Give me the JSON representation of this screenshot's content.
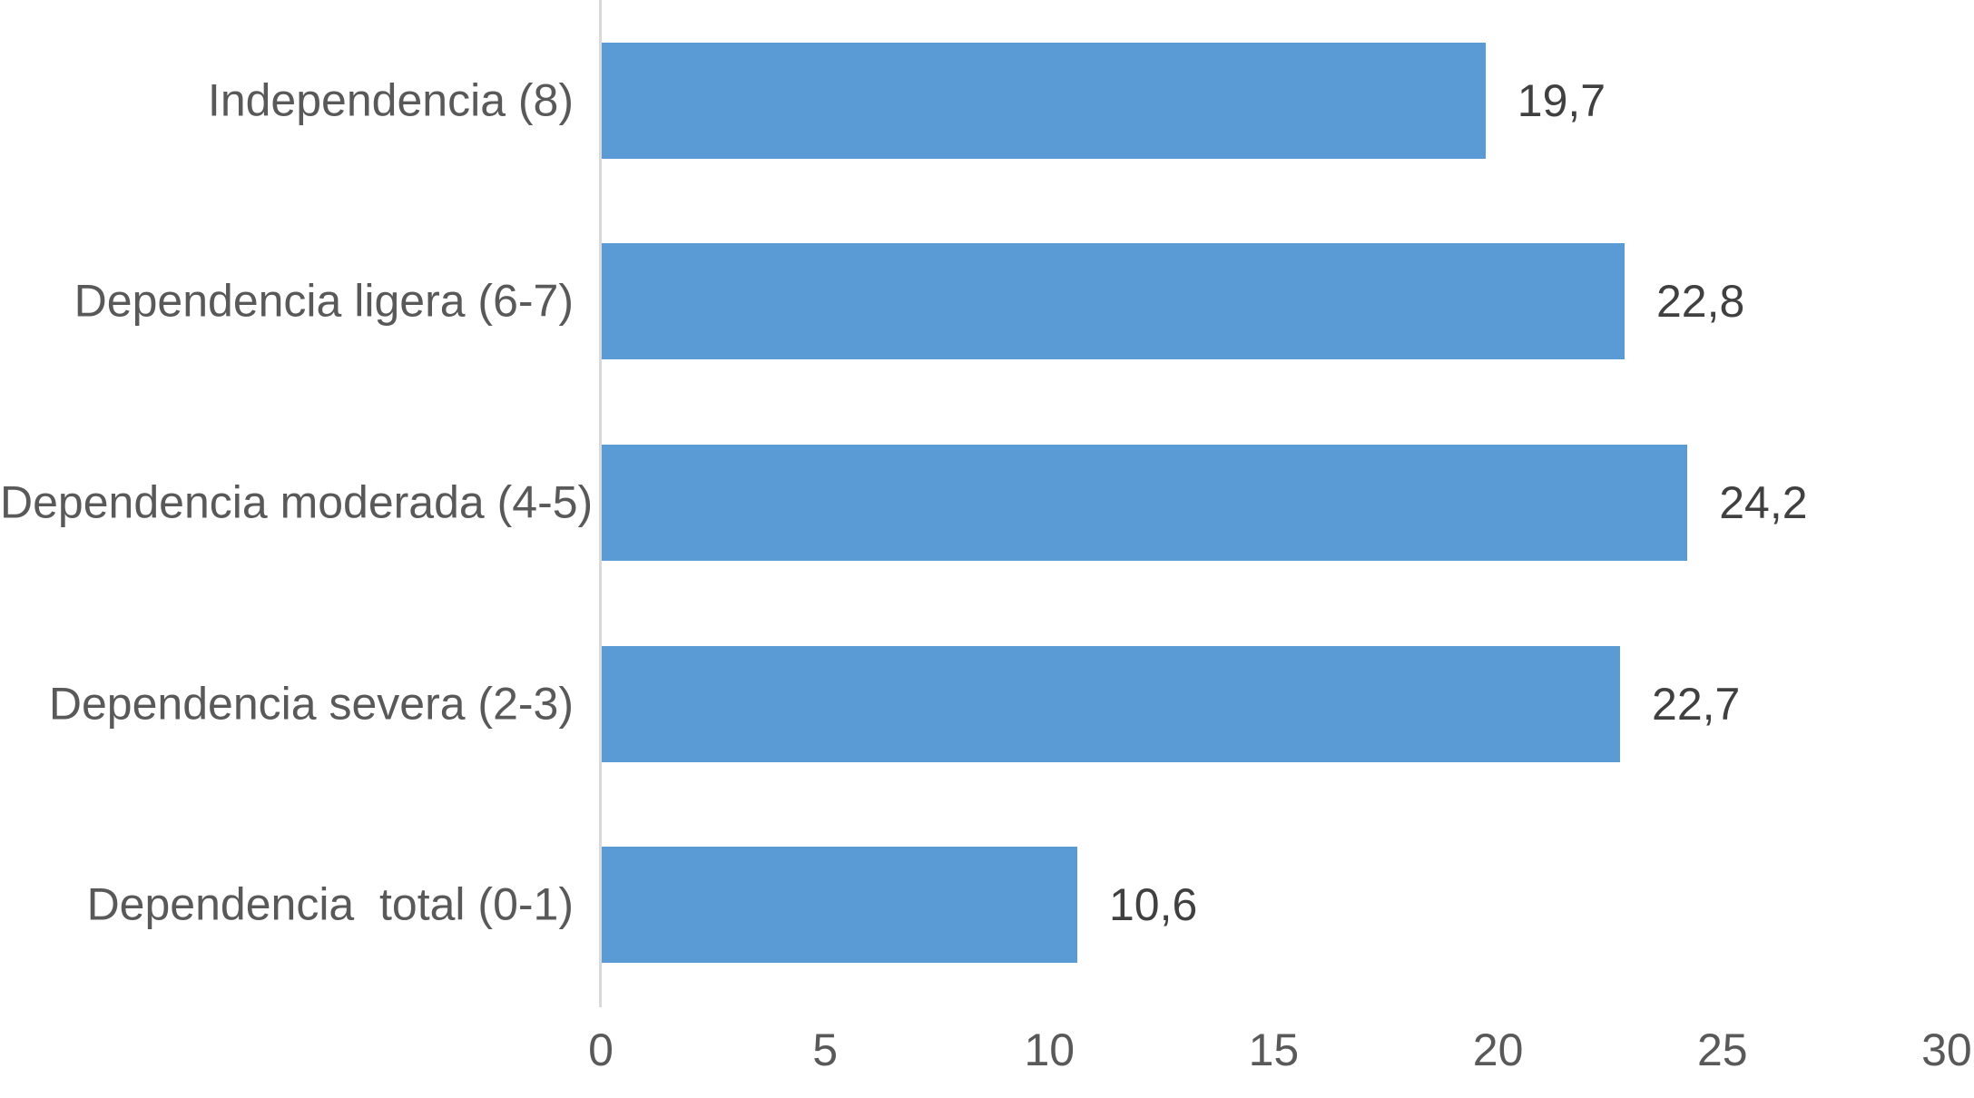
{
  "chart_data": {
    "type": "bar",
    "orientation": "horizontal",
    "title": "",
    "xlabel": "",
    "ylabel": "",
    "categories": [
      "Independencia (8)",
      "Dependencia ligera (6-7)",
      "Dependencia moderada (4-5)",
      "Dependencia severa (2-3)",
      "Dependencia  total (0-1)"
    ],
    "values": [
      19.7,
      22.8,
      24.2,
      22.7,
      10.6
    ],
    "value_labels": [
      "19,7",
      "22,8",
      "24,2",
      "22,7",
      "10,6"
    ],
    "x_ticks": [
      0,
      5,
      10,
      15,
      20,
      25,
      30
    ],
    "x_tick_labels": [
      "0",
      "5",
      "10",
      "15",
      "20",
      "25",
      "30"
    ],
    "xlim": [
      0,
      30
    ],
    "grid": false,
    "legend_position": "none",
    "bar_color": "#5B9BD5",
    "axis_line_color": "#D9D9D9",
    "category_label_color": "#595959",
    "tick_label_color": "#595959",
    "value_label_color": "#404040"
  }
}
